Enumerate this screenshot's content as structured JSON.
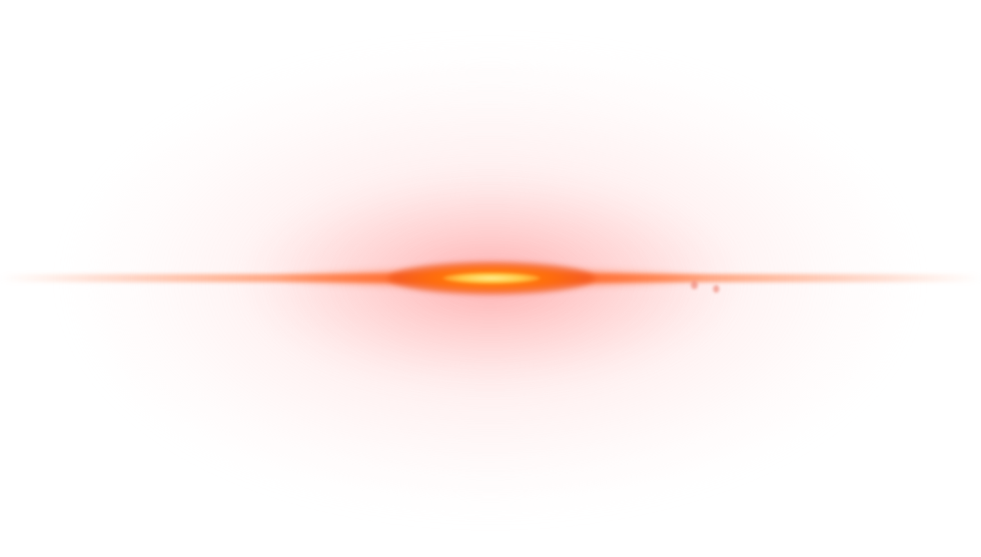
{
  "scene": {
    "subject": "lens-flare",
    "colors": {
      "background": "#ffffff",
      "core": "#ffe89a",
      "glow": "#ff7a14",
      "haze": "#ffc8c8"
    }
  }
}
